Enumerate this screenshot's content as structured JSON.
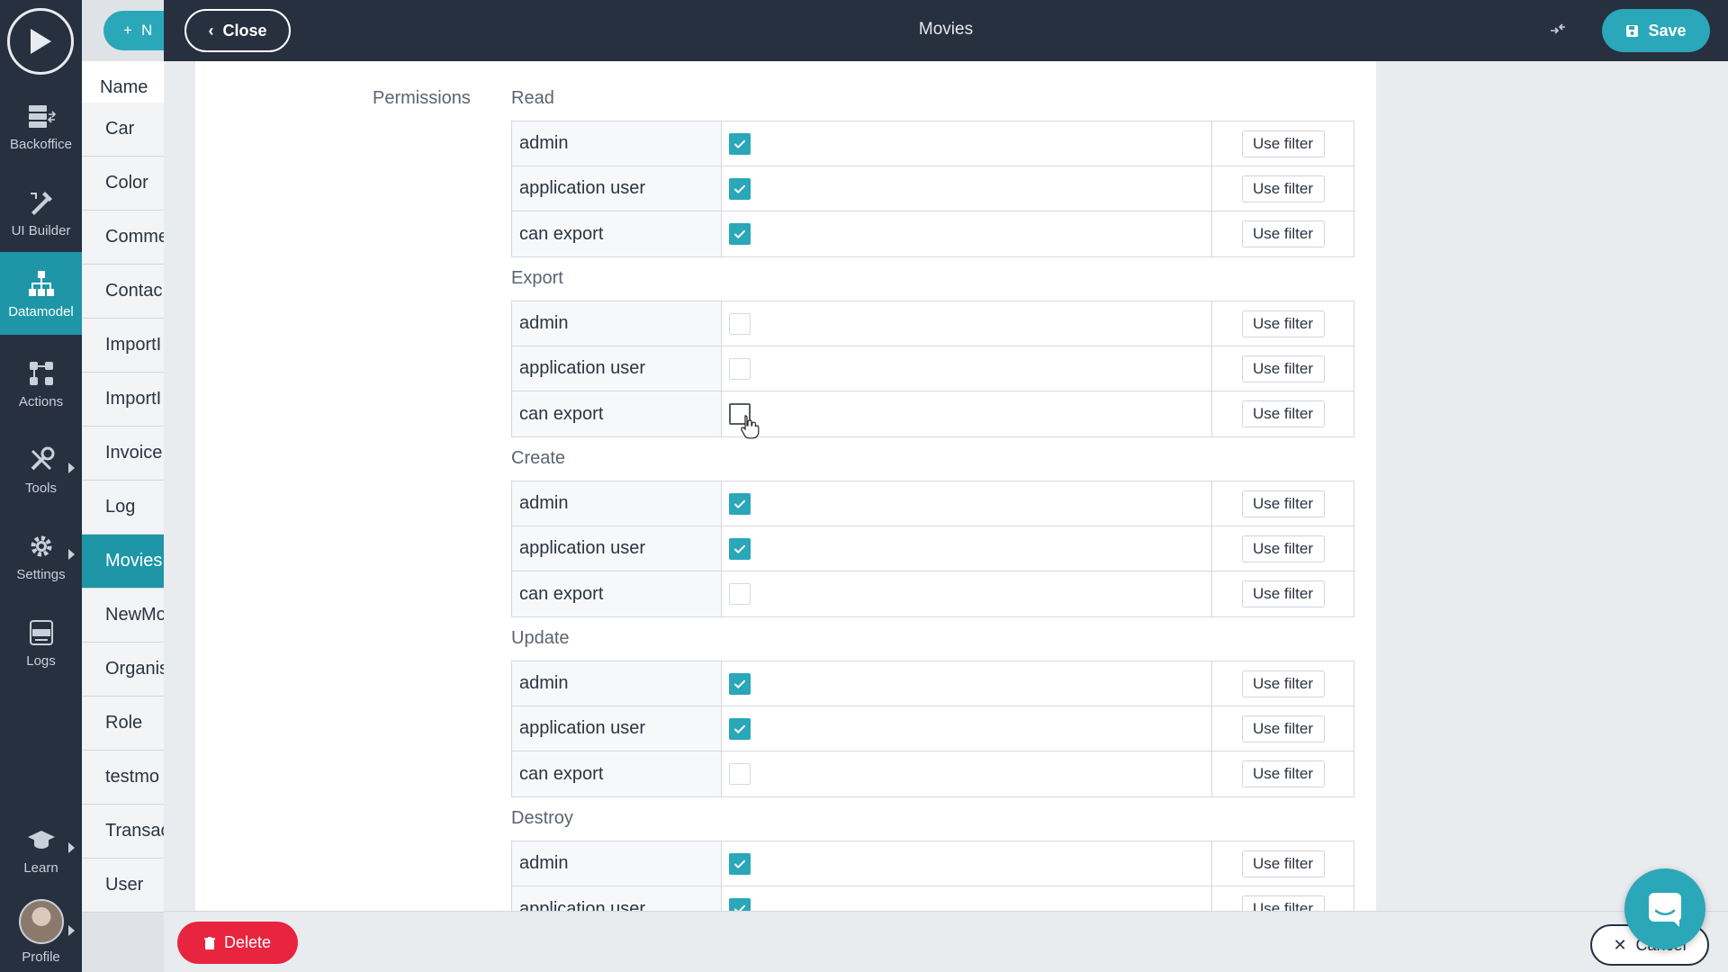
{
  "app": {
    "page_title": "Movies"
  },
  "leftnav": {
    "items": [
      {
        "label": "Backoffice",
        "icon": "backoffice-icon"
      },
      {
        "label": "UI Builder",
        "icon": "ui-builder-icon"
      },
      {
        "label": "Datamodel",
        "icon": "datamodel-icon"
      },
      {
        "label": "Actions",
        "icon": "actions-icon"
      },
      {
        "label": "Tools",
        "icon": "tools-icon"
      },
      {
        "label": "Settings",
        "icon": "gear-icon"
      },
      {
        "label": "Logs",
        "icon": "logs-icon"
      },
      {
        "label": "Learn",
        "icon": "graduation-cap-icon"
      },
      {
        "label": "Profile",
        "icon": "avatar"
      }
    ]
  },
  "modellist": {
    "new_label": "N",
    "header": "Name",
    "items": [
      "Car",
      "Color",
      "Comme",
      "Contac",
      "ImportI",
      "ImportI",
      "Invoice",
      "Log",
      "Movies",
      "NewMo",
      "Organis",
      "Role",
      "testmo",
      "Transac",
      "User"
    ]
  },
  "topbar": {
    "close_label": "Close",
    "save_label": "Save"
  },
  "permissions": {
    "label": "Permissions",
    "filter_label": "Use filter",
    "sections": [
      {
        "title": "Read",
        "rows": [
          {
            "role": "admin",
            "checked": true
          },
          {
            "role": "application user",
            "checked": true
          },
          {
            "role": "can export",
            "checked": true
          }
        ]
      },
      {
        "title": "Export",
        "rows": [
          {
            "role": "admin",
            "checked": false
          },
          {
            "role": "application user",
            "checked": false
          },
          {
            "role": "can export",
            "checked": false
          }
        ]
      },
      {
        "title": "Create",
        "rows": [
          {
            "role": "admin",
            "checked": true
          },
          {
            "role": "application user",
            "checked": true
          },
          {
            "role": "can export",
            "checked": false
          }
        ]
      },
      {
        "title": "Update",
        "rows": [
          {
            "role": "admin",
            "checked": true
          },
          {
            "role": "application user",
            "checked": true
          },
          {
            "role": "can export",
            "checked": false
          }
        ]
      },
      {
        "title": "Destroy",
        "rows": [
          {
            "role": "admin",
            "checked": true
          },
          {
            "role": "application user",
            "checked": true
          }
        ]
      }
    ]
  },
  "footer": {
    "delete_label": "Delete",
    "cancel_label": "Cancel"
  },
  "colors": {
    "accent": "#2aa7b8",
    "nav_bg": "#27303e",
    "danger": "#e8243f"
  }
}
